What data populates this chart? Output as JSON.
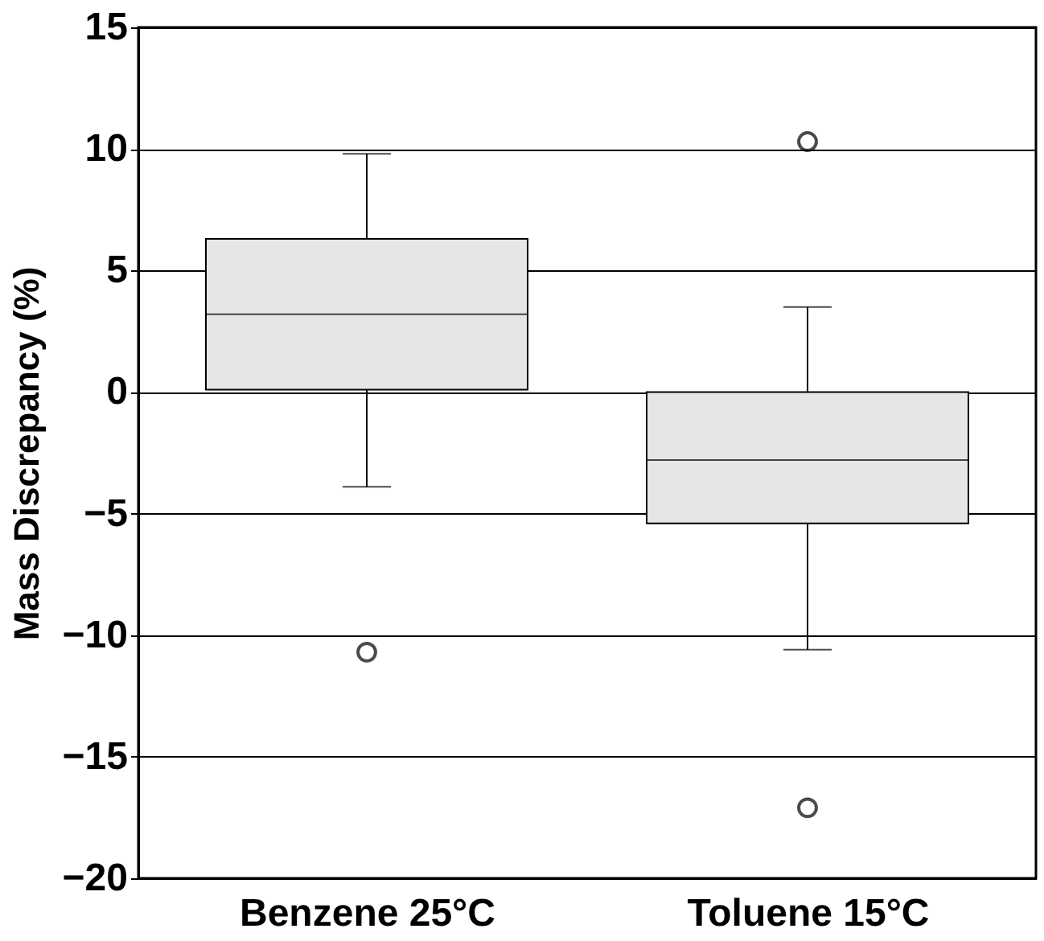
{
  "chart_data": {
    "type": "box",
    "ylabel": "Mass Discrepancy (%)",
    "categories": [
      "Benzene 25°C",
      "Toluene 15°C"
    ],
    "boxes": [
      {
        "low": -3.9,
        "q1": 0.1,
        "median": 3.2,
        "q3": 6.3,
        "high": 9.8,
        "outliers": [
          -10.7
        ]
      },
      {
        "low": -10.6,
        "q1": -5.4,
        "median": -2.8,
        "q3": 0,
        "high": 3.5,
        "outliers": [
          10.3,
          -17.1
        ]
      }
    ],
    "color": "#e6e6e6",
    "ylim": [
      -20,
      15
    ],
    "yticks": [
      -20,
      -15,
      -10,
      -5,
      0,
      5,
      10,
      15
    ],
    "grid": "y"
  }
}
